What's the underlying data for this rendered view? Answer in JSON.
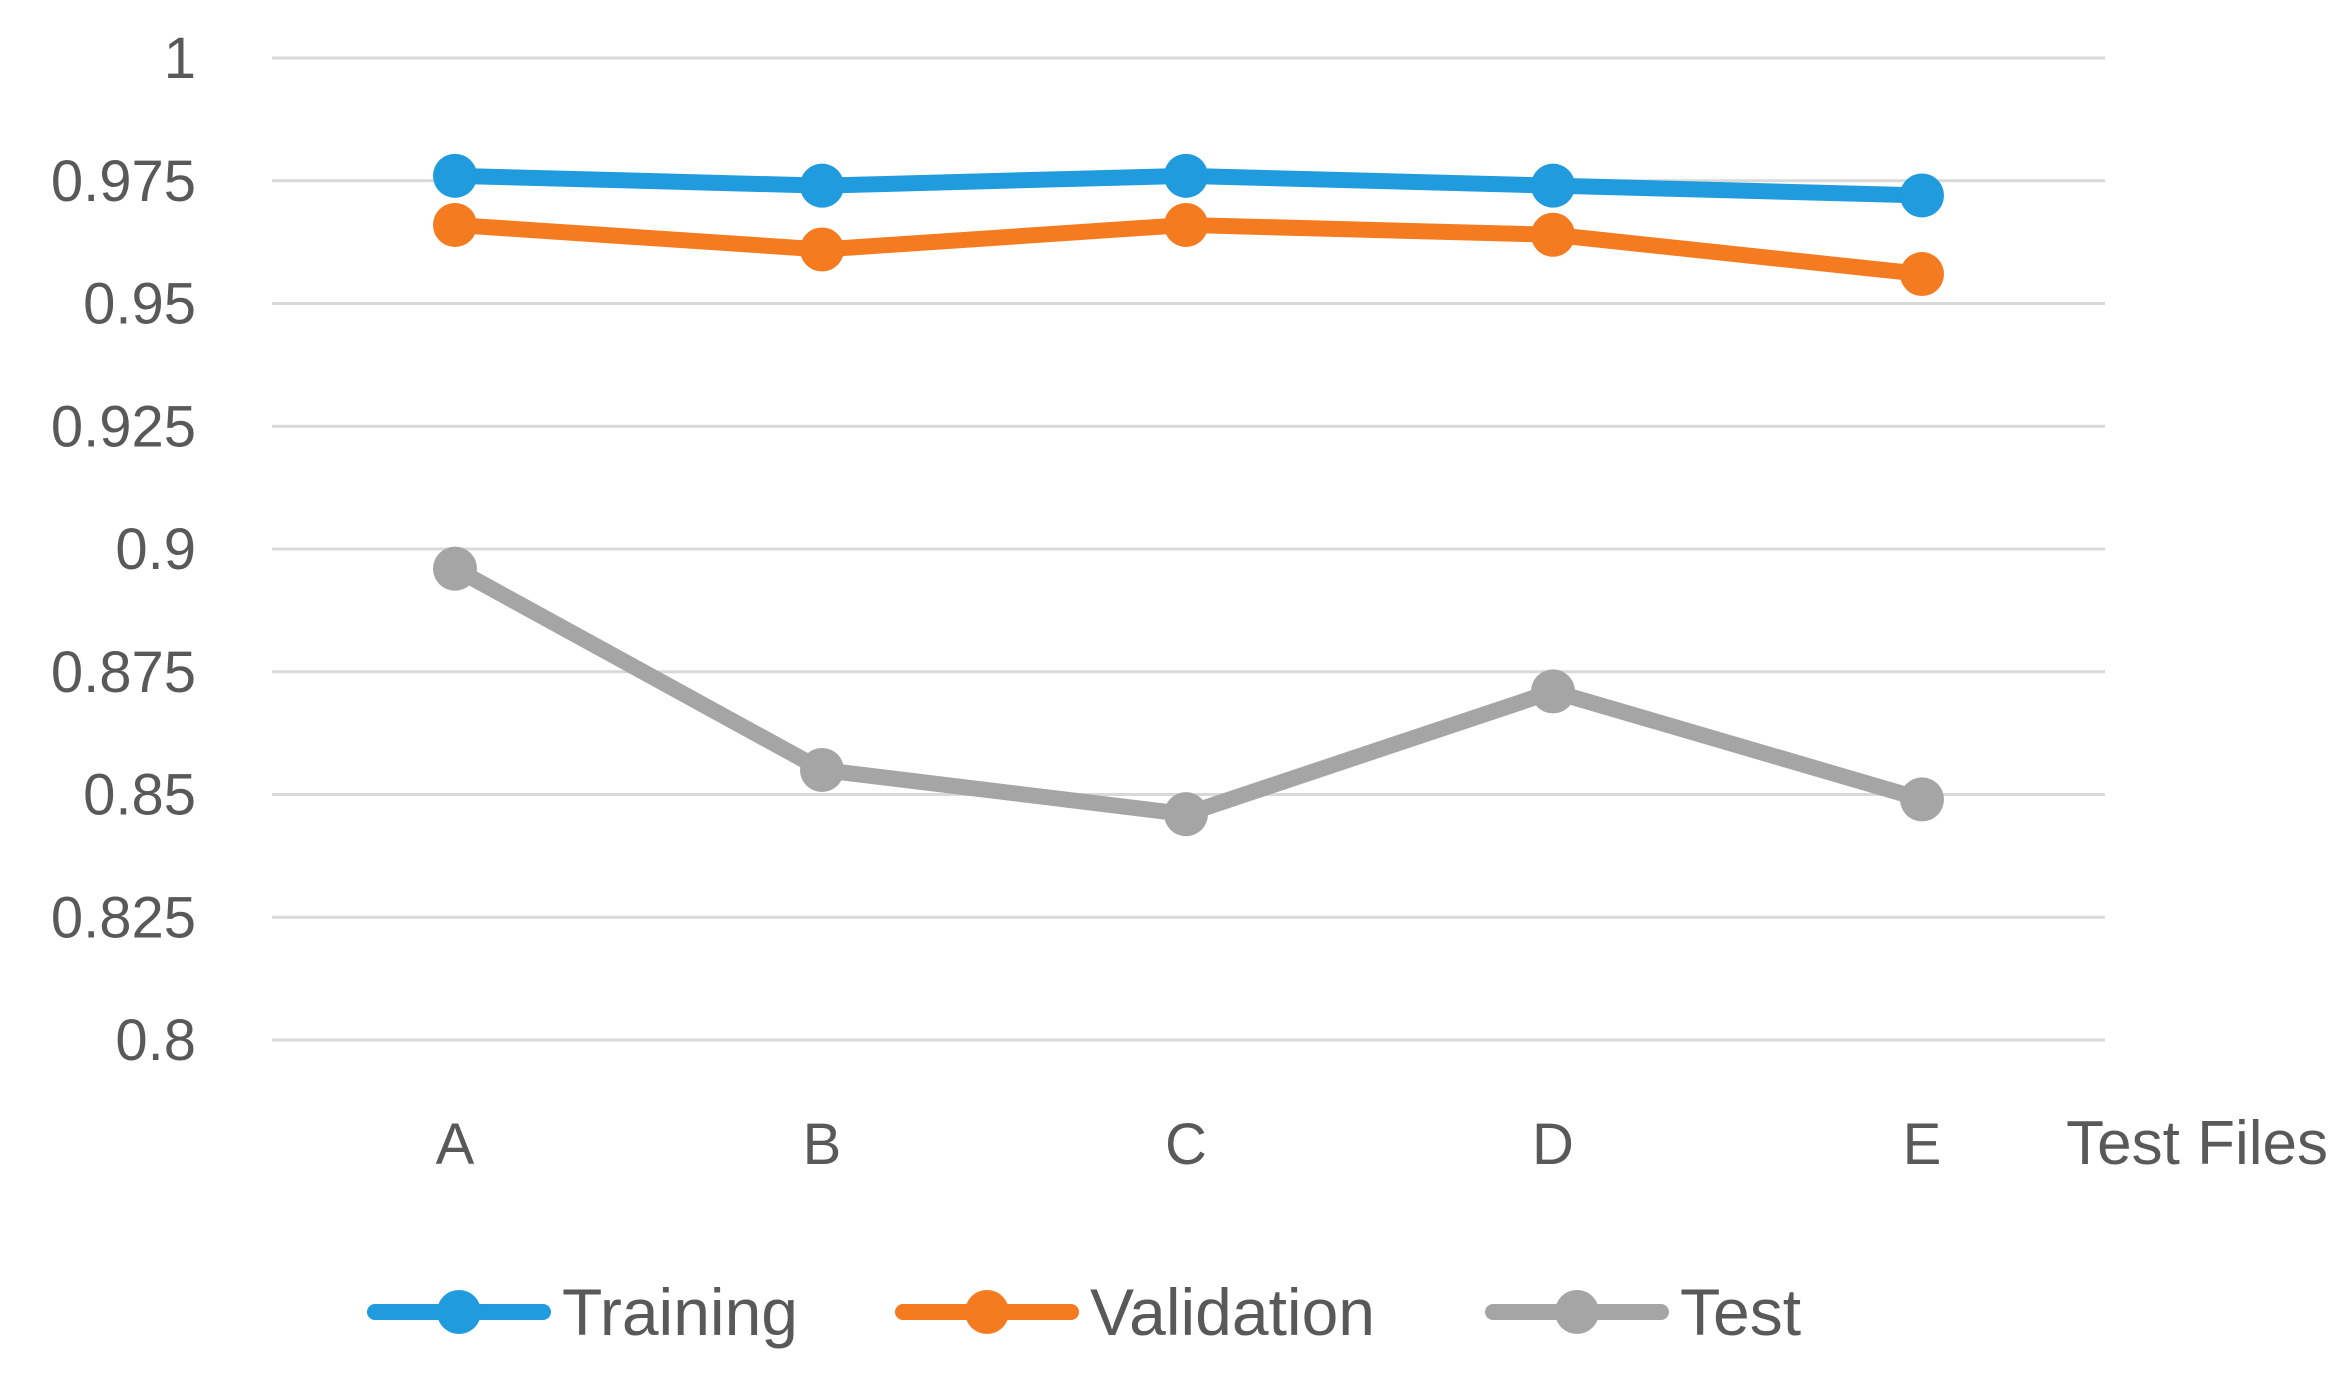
{
  "chart_data": {
    "type": "line",
    "title": "",
    "xlabel": "Test Files",
    "ylabel": "",
    "categories": [
      "A",
      "B",
      "C",
      "D",
      "E"
    ],
    "ylim": [
      0.8,
      1.0
    ],
    "yticks": [
      0.8,
      0.825,
      0.85,
      0.875,
      0.9,
      0.925,
      0.95,
      0.975,
      1
    ],
    "ytick_labels": [
      "0.8",
      "0.825",
      "0.85",
      "0.875",
      "0.9",
      "0.925",
      "0.95",
      "0.975",
      "1"
    ],
    "grid": true,
    "legend_position": "bottom",
    "series": [
      {
        "name": "Training",
        "color": "#1f9bde",
        "values": [
          0.976,
          0.974,
          0.976,
          0.974,
          0.972
        ]
      },
      {
        "name": "Validation",
        "color": "#f47b20",
        "values": [
          0.966,
          0.961,
          0.966,
          0.964,
          0.956
        ]
      },
      {
        "name": "Test",
        "color": "#a5a5a5",
        "values": [
          0.896,
          0.855,
          0.846,
          0.871,
          0.849
        ]
      }
    ]
  }
}
